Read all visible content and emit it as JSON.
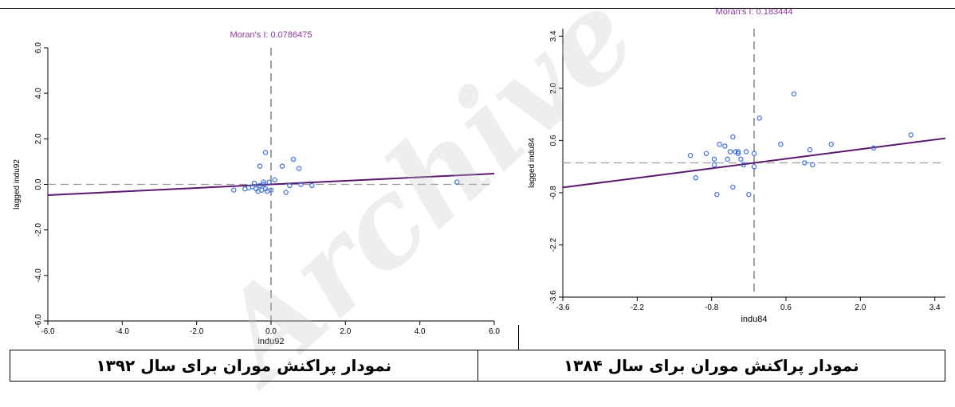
{
  "watermark": "Archive",
  "captions": {
    "left": "نمودار پراکنش موران برای سال ۱۳۹۲",
    "right": "نمودار پراکنش موران برای سال ۱۳۸۴"
  },
  "chart_data": [
    {
      "type": "scatter",
      "title": "Moran's I: 0.0786475",
      "xlabel": "indu92",
      "ylabel": "lagged indu92",
      "xlim": [
        -6,
        6
      ],
      "ylim": [
        -6,
        6
      ],
      "xticks": [
        "-6.0",
        "-4.0",
        "-2.0",
        "0.0",
        "2.0",
        "4.0",
        "6.0"
      ],
      "yticks": [
        "-6.0",
        "-4.0",
        "-2.0",
        "0.0",
        "2.0",
        "4.0",
        "6.0"
      ],
      "slope": 0.0786475,
      "point_color": "#3b6fdc",
      "line_color": "#5a1870",
      "title_color": "#8b3a9b",
      "points": [
        [
          5.0,
          0.1
        ],
        [
          -1.0,
          -0.25
        ],
        [
          -0.7,
          -0.2
        ],
        [
          -0.6,
          -0.15
        ],
        [
          -0.5,
          -0.1
        ],
        [
          -0.45,
          0.05
        ],
        [
          -0.4,
          -0.2
        ],
        [
          -0.35,
          -0.3
        ],
        [
          -0.3,
          -0.05
        ],
        [
          -0.25,
          -0.25
        ],
        [
          -0.2,
          0.0
        ],
        [
          -0.15,
          -0.2
        ],
        [
          -0.1,
          -0.3
        ],
        [
          -0.05,
          0.1
        ],
        [
          0.0,
          -0.25
        ],
        [
          -0.3,
          0.8
        ],
        [
          -0.15,
          1.4
        ],
        [
          0.3,
          0.8
        ],
        [
          0.6,
          1.1
        ],
        [
          0.75,
          0.7
        ],
        [
          0.4,
          -0.35
        ],
        [
          0.5,
          -0.05
        ],
        [
          0.8,
          0.0
        ],
        [
          -0.2,
          0.1
        ],
        [
          1.1,
          -0.05
        ],
        [
          0.1,
          0.2
        ]
      ]
    },
    {
      "type": "scatter",
      "title": "Moran's I: 0.183444",
      "xlabel": "indu84",
      "ylabel": "lagged indu84",
      "xlim": [
        -3.6,
        3.6
      ],
      "ylim": [
        -3.6,
        3.6
      ],
      "xticks": [
        "-3.6",
        "-2.2",
        "-0.8",
        "0.6",
        "2.0",
        "3.4"
      ],
      "yticks": [
        "-3.6",
        "-2.2",
        "-0.8",
        "0.6",
        "2.0",
        "3.4"
      ],
      "slope": 0.183444,
      "point_color": "#3b6fdc",
      "line_color": "#5a1870",
      "title_color": "#8b3a9b",
      "points": [
        [
          -1.2,
          0.2
        ],
        [
          -1.1,
          -0.4
        ],
        [
          -0.9,
          0.25
        ],
        [
          -0.75,
          -0.05
        ],
        [
          -0.7,
          -0.85
        ],
        [
          -0.75,
          0.1
        ],
        [
          -0.65,
          0.5
        ],
        [
          -0.55,
          0.45
        ],
        [
          -0.5,
          0.1
        ],
        [
          -0.45,
          0.3
        ],
        [
          -0.4,
          -0.65
        ],
        [
          -0.4,
          0.7
        ],
        [
          -0.35,
          0.3
        ],
        [
          -0.3,
          0.3
        ],
        [
          -0.25,
          0.1
        ],
        [
          -0.2,
          -0.05
        ],
        [
          -0.15,
          0.3
        ],
        [
          -0.1,
          -0.85
        ],
        [
          0.0,
          -0.1
        ],
        [
          0.0,
          0.25
        ],
        [
          0.1,
          1.2
        ],
        [
          0.5,
          0.5
        ],
        [
          0.75,
          1.85
        ],
        [
          0.95,
          0.0
        ],
        [
          1.05,
          0.35
        ],
        [
          1.1,
          -0.05
        ],
        [
          1.45,
          0.5
        ],
        [
          2.25,
          0.4
        ],
        [
          2.95,
          0.75
        ],
        [
          -0.3,
          0.25
        ]
      ]
    }
  ]
}
